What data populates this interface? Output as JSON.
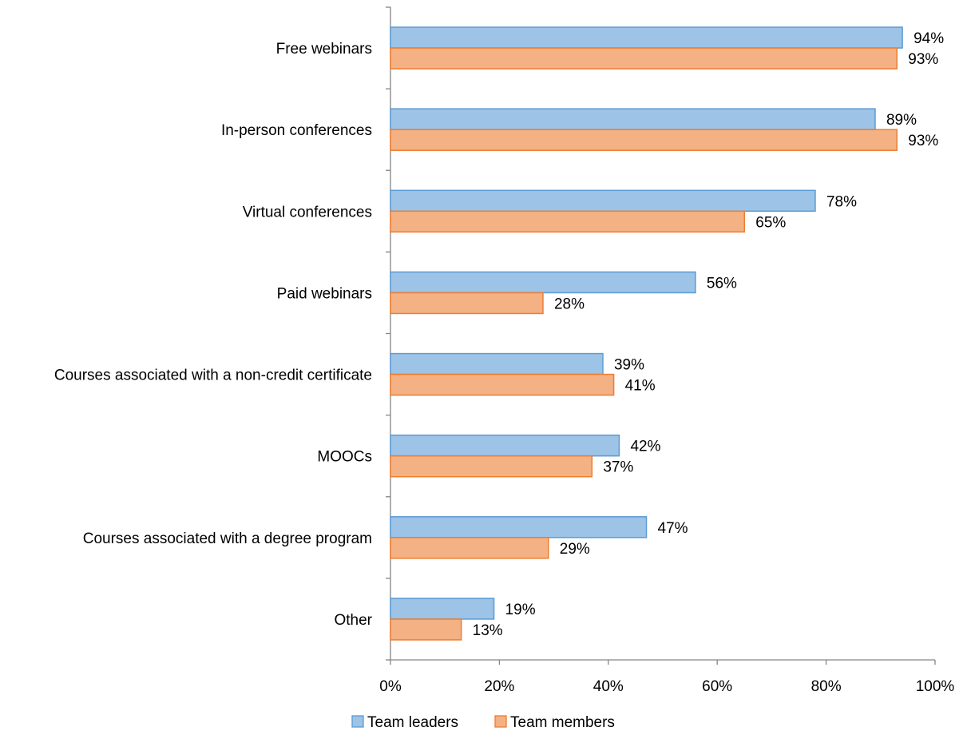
{
  "chart_data": {
    "type": "bar",
    "orientation": "horizontal",
    "categories": [
      "Free webinars",
      "In-person conferences",
      "Virtual conferences",
      "Paid webinars",
      "Courses associated with a non-credit certificate",
      "MOOCs",
      "Courses associated with a degree program",
      "Other"
    ],
    "series": [
      {
        "name": "Team leaders",
        "values": [
          94,
          89,
          78,
          56,
          39,
          42,
          47,
          19
        ],
        "labels": [
          "94%",
          "89%",
          "78%",
          "56%",
          "39%",
          "42%",
          "47%",
          "19%"
        ],
        "color": "#9DC3E6",
        "border": "#5B9BD5"
      },
      {
        "name": "Team members",
        "values": [
          93,
          93,
          65,
          28,
          41,
          37,
          29,
          13
        ],
        "labels": [
          "93%",
          "93%",
          "65%",
          "28%",
          "41%",
          "37%",
          "29%",
          "13%"
        ],
        "color": "#F4B183",
        "border": "#ED7D31"
      }
    ],
    "xlim": [
      0,
      100
    ],
    "x_ticks": [
      "0%",
      "20%",
      "40%",
      "60%",
      "80%",
      "100%"
    ],
    "x_tick_values": [
      0,
      20,
      40,
      60,
      80,
      100
    ],
    "grid": false,
    "legend_position": "bottom"
  }
}
